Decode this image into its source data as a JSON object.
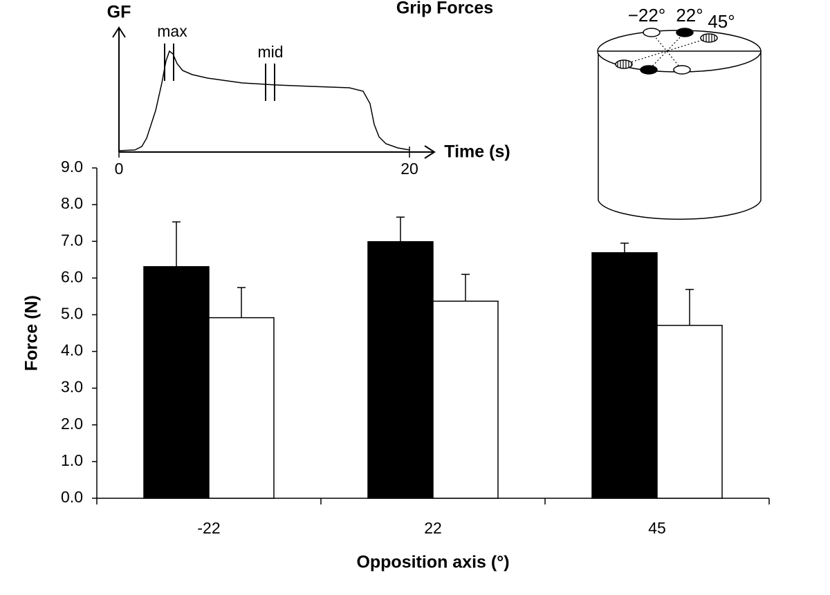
{
  "chart_data": {
    "type": "bar",
    "title": "Grip Forces",
    "x_label": "Opposition axis (°)",
    "y_label": "Force (N)",
    "categories": [
      "-22",
      "22",
      "45"
    ],
    "series": [
      {
        "color": "#000000",
        "values": [
          6.31,
          6.99,
          6.69
        ],
        "errors": [
          1.22,
          0.67,
          0.26
        ]
      },
      {
        "color": "#ffffff",
        "values": [
          4.92,
          5.37,
          4.71
        ],
        "errors": [
          0.82,
          0.73,
          0.98
        ]
      }
    ],
    "ylim": [
      0,
      9
    ],
    "yticks": [
      {
        "value": 0,
        "label": "0.0"
      },
      {
        "value": 1,
        "label": "1.0"
      },
      {
        "value": 2,
        "label": "2.0"
      },
      {
        "value": 3,
        "label": "3.0"
      },
      {
        "value": 4,
        "label": "4.0"
      },
      {
        "value": 5,
        "label": "5.0"
      },
      {
        "value": 6,
        "label": "6.0"
      },
      {
        "value": 7,
        "label": "7.0"
      },
      {
        "value": 8,
        "label": "8.0"
      },
      {
        "value": 9,
        "label": "9.0"
      }
    ]
  },
  "inset": {
    "y_label": "GF",
    "x_label": "Time (s)",
    "xlim": [
      0,
      20
    ],
    "xticks": [
      0,
      20
    ],
    "markers": [
      "max",
      "mid"
    ]
  },
  "diagram": {
    "angle_labels": [
      "−22°",
      "22°",
      "45°"
    ]
  }
}
